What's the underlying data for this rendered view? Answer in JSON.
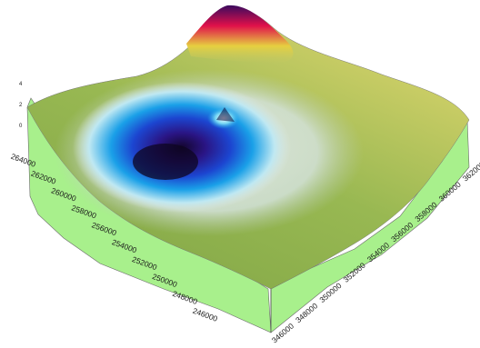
{
  "chart_data": {
    "type": "surface",
    "title": "",
    "xlabel": "",
    "ylabel": "",
    "zlabel": "",
    "x_ticks": [
      "346000",
      "348000",
      "350000",
      "352000",
      "354000",
      "356000",
      "358000",
      "360000",
      "362000"
    ],
    "y_ticks": [
      "246000",
      "248000",
      "250000",
      "252000",
      "254000",
      "256000",
      "258000",
      "260000",
      "262000",
      "264000"
    ],
    "z_ticks": [
      "4",
      "2",
      "0"
    ],
    "x_range": [
      346000,
      362000
    ],
    "y_range": [
      246000,
      264000
    ],
    "colormap": [
      "#1a0a3a",
      "#1c2fb8",
      "#1a9be6",
      "#d8f2f6",
      "#8fb44e",
      "#c9c23a",
      "#e8144a"
    ],
    "surface_features": [
      {
        "kind": "depression",
        "x": 350000,
        "y": 258000,
        "color": "#1a0a3a"
      },
      {
        "kind": "peak",
        "x": 352000,
        "y": 264000,
        "color": "#e8144a"
      }
    ],
    "side_wall_color": "#a8f08c",
    "grid": false,
    "legend": "none"
  }
}
